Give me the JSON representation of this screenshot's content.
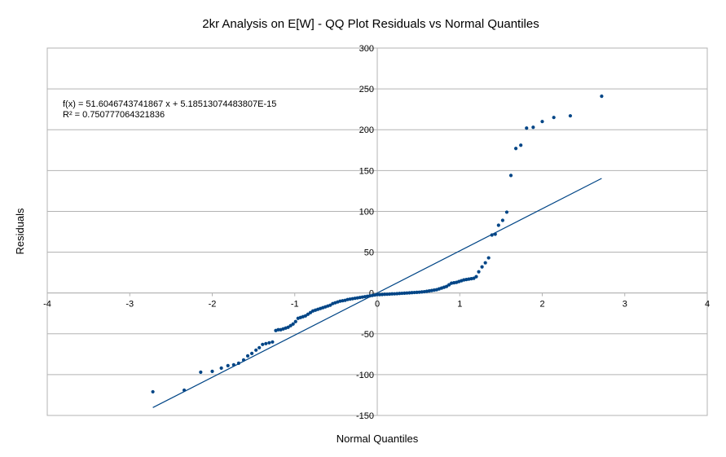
{
  "chart_data": {
    "type": "scatter",
    "title": "2kr Analysis on E[W] - QQ Plot Residuals vs Normal Quantiles",
    "xlabel": "Normal Quantiles",
    "ylabel": "Residuals",
    "xlim": [
      -4,
      4
    ],
    "ylim": [
      -150,
      300
    ],
    "xticks": [
      -4,
      -3,
      -2,
      -1,
      0,
      1,
      2,
      3,
      4
    ],
    "yticks": [
      -150,
      -100,
      -50,
      0,
      50,
      100,
      150,
      200,
      250,
      300
    ],
    "grid": "horizontal",
    "legend": "none",
    "colors": {
      "points": "#004586",
      "trendline": "#004586",
      "gridlines": "#b3b3b3",
      "axis": "#b3b3b3"
    },
    "trendline": {
      "slope": 51.6046743741867,
      "intercept": 5.18513074483807e-15,
      "x_range": [
        -2.72,
        2.72
      ],
      "equation_text": "f(x) = 51.6046743741867 x + 5.18513074483807E-15",
      "r2_text": "R² = 0.750777064321836"
    },
    "points": [
      [
        -2.72,
        -121
      ],
      [
        -2.34,
        -119
      ],
      [
        -2.14,
        -97
      ],
      [
        -2.0,
        -96
      ],
      [
        -1.89,
        -92
      ],
      [
        -1.81,
        -89
      ],
      [
        -1.74,
        -88
      ],
      [
        -1.68,
        -86
      ],
      [
        -1.62,
        -82
      ],
      [
        -1.57,
        -77
      ],
      [
        -1.52,
        -74
      ],
      [
        -1.47,
        -70
      ],
      [
        -1.43,
        -67
      ],
      [
        -1.39,
        -63
      ],
      [
        -1.35,
        -62
      ],
      [
        -1.31,
        -61
      ],
      [
        -1.27,
        -60
      ],
      [
        -1.23,
        -46
      ],
      [
        -1.2,
        -45
      ],
      [
        -1.17,
        -45
      ],
      [
        -1.14,
        -44
      ],
      [
        -1.11,
        -43
      ],
      [
        -1.08,
        -42
      ],
      [
        -1.05,
        -40
      ],
      [
        -1.02,
        -38
      ],
      [
        -0.99,
        -35
      ],
      [
        -0.96,
        -31
      ],
      [
        -0.93,
        -30
      ],
      [
        -0.9,
        -29
      ],
      [
        -0.87,
        -28
      ],
      [
        -0.84,
        -26
      ],
      [
        -0.81,
        -24
      ],
      [
        -0.78,
        -22
      ],
      [
        -0.75,
        -21
      ],
      [
        -0.72,
        -20
      ],
      [
        -0.69,
        -19
      ],
      [
        -0.66,
        -18
      ],
      [
        -0.63,
        -17
      ],
      [
        -0.6,
        -16
      ],
      [
        -0.57,
        -15
      ],
      [
        -0.54,
        -13
      ],
      [
        -0.51,
        -12
      ],
      [
        -0.48,
        -11
      ],
      [
        -0.45,
        -10
      ],
      [
        -0.42,
        -9.5
      ],
      [
        -0.39,
        -9
      ],
      [
        -0.36,
        -8
      ],
      [
        -0.33,
        -7.5
      ],
      [
        -0.3,
        -7
      ],
      [
        -0.27,
        -6.5
      ],
      [
        -0.24,
        -6
      ],
      [
        -0.21,
        -5.5
      ],
      [
        -0.18,
        -5
      ],
      [
        -0.15,
        -4.5
      ],
      [
        -0.12,
        -4
      ],
      [
        -0.09,
        -3.5
      ],
      [
        -0.06,
        -3
      ],
      [
        -0.03,
        -2.5
      ],
      [
        0.0,
        -2
      ],
      [
        0.03,
        -2
      ],
      [
        0.06,
        -1.8
      ],
      [
        0.09,
        -1.6
      ],
      [
        0.12,
        -1.5
      ],
      [
        0.15,
        -1.3
      ],
      [
        0.18,
        -1.1
      ],
      [
        0.21,
        -1
      ],
      [
        0.24,
        -0.8
      ],
      [
        0.27,
        -0.6
      ],
      [
        0.3,
        -0.4
      ],
      [
        0.33,
        -0.2
      ],
      [
        0.36,
        0
      ],
      [
        0.39,
        0.2
      ],
      [
        0.42,
        0.4
      ],
      [
        0.45,
        0.6
      ],
      [
        0.48,
        0.8
      ],
      [
        0.51,
        1
      ],
      [
        0.54,
        1.3
      ],
      [
        0.57,
        1.6
      ],
      [
        0.6,
        2
      ],
      [
        0.63,
        2.5
      ],
      [
        0.66,
        3
      ],
      [
        0.69,
        3.5
      ],
      [
        0.72,
        4
      ],
      [
        0.75,
        5
      ],
      [
        0.78,
        6
      ],
      [
        0.81,
        7
      ],
      [
        0.84,
        8
      ],
      [
        0.87,
        10
      ],
      [
        0.9,
        12
      ],
      [
        0.93,
        12.5
      ],
      [
        0.96,
        13
      ],
      [
        0.99,
        14
      ],
      [
        1.02,
        15
      ],
      [
        1.05,
        16
      ],
      [
        1.08,
        16.5
      ],
      [
        1.11,
        17
      ],
      [
        1.14,
        17.5
      ],
      [
        1.17,
        18
      ],
      [
        1.2,
        20
      ],
      [
        1.23,
        26
      ],
      [
        1.27,
        32
      ],
      [
        1.31,
        37
      ],
      [
        1.35,
        43
      ],
      [
        1.39,
        71
      ],
      [
        1.43,
        72
      ],
      [
        1.47,
        83
      ],
      [
        1.52,
        89
      ],
      [
        1.57,
        99
      ],
      [
        1.62,
        144
      ],
      [
        1.68,
        177
      ],
      [
        1.74,
        181
      ],
      [
        1.81,
        202
      ],
      [
        1.89,
        203
      ],
      [
        2.0,
        210
      ],
      [
        2.14,
        215
      ],
      [
        2.34,
        217
      ],
      [
        2.72,
        241
      ]
    ]
  }
}
